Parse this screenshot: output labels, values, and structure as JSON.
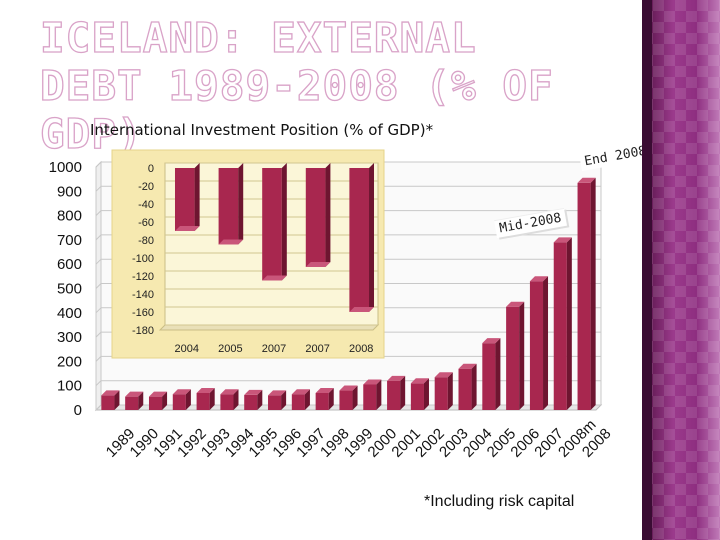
{
  "slide": {
    "title": "ICELAND: EXTERNAL DEBT 1989-2008 (% OF GDP)",
    "subtitle": "International Investment Position (% of GDP)*",
    "footnote": "*Including risk capital"
  },
  "annotations": {
    "mid": "Mid-2008",
    "end": "End 2008"
  },
  "colors": {
    "bar": "#a8274f",
    "bar_top": "#c9567a",
    "bar_side": "#6e1530",
    "inset_bg": "#f6e9b0",
    "sidebar": "#8e2e80"
  },
  "chart_data": [
    {
      "type": "bar",
      "title": "",
      "xlabel": "",
      "ylabel": "",
      "ylim": [
        0,
        1000
      ],
      "yticks": [
        0,
        100,
        200,
        300,
        400,
        500,
        600,
        700,
        800,
        900,
        1000
      ],
      "grid": true,
      "categories": [
        "1989",
        "1990",
        "1991",
        "1992",
        "1993",
        "1994",
        "1995",
        "1996",
        "1997",
        "1998",
        "1999",
        "2000",
        "2001",
        "2002",
        "2003",
        "2004",
        "2005",
        "2006",
        "2007",
        "2008m",
        "2008"
      ],
      "values": [
        60,
        55,
        55,
        65,
        70,
        65,
        62,
        60,
        65,
        70,
        80,
        105,
        120,
        110,
        135,
        170,
        275,
        425,
        530,
        690,
        935
      ]
    },
    {
      "type": "bar",
      "title": "",
      "ylim": [
        -180,
        0
      ],
      "yticks": [
        0,
        -20,
        -40,
        -60,
        -80,
        -100,
        -120,
        -140,
        -160,
        -180
      ],
      "grid": true,
      "categories": [
        "2004",
        "2005",
        "2007",
        "2007",
        "2008"
      ],
      "values": [
        -70,
        -85,
        -125,
        -110,
        -160
      ]
    }
  ]
}
